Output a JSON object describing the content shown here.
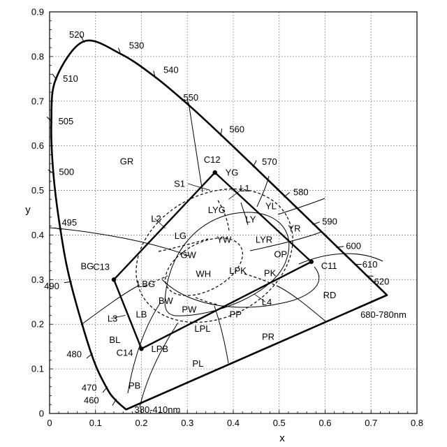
{
  "chart_data": {
    "type": "diagram",
    "xlabel": "x",
    "ylabel": "y",
    "xlim": [
      0,
      0.8
    ],
    "ylim": [
      0,
      0.9
    ],
    "x_ticks": [
      "0",
      "0.1",
      "0.2",
      "0.3",
      "0.4",
      "0.5",
      "0.6",
      "0.7",
      "0.8"
    ],
    "y_ticks": [
      "0",
      "0.1",
      "0.2",
      "0.3",
      "0.4",
      "0.5",
      "0.6",
      "0.7",
      "0.8",
      "0.9"
    ],
    "spectral_locus": [
      {
        "label": "380-410nm",
        "x": 0.1666,
        "y": 0.0089
      },
      {
        "label": "460",
        "x": 0.144,
        "y": 0.0297
      },
      {
        "label": "470",
        "x": 0.1241,
        "y": 0.0578
      },
      {
        "label": "480",
        "x": 0.0913,
        "y": 0.1327
      },
      {
        "label": "490",
        "x": 0.0454,
        "y": 0.295
      },
      {
        "label": "495",
        "x": 0.0235,
        "y": 0.4127
      },
      {
        "label": "500",
        "x": 0.0082,
        "y": 0.5384
      },
      {
        "label": "505",
        "x": 0.0039,
        "y": 0.6548
      },
      {
        "label": "510",
        "x": 0.0139,
        "y": 0.7502
      },
      {
        "label": "520",
        "x": 0.0743,
        "y": 0.8338
      },
      {
        "label": "530",
        "x": 0.1547,
        "y": 0.8059
      },
      {
        "label": "540",
        "x": 0.2296,
        "y": 0.7543
      },
      {
        "label": "550",
        "x": 0.3016,
        "y": 0.6923
      },
      {
        "label": "560",
        "x": 0.3731,
        "y": 0.6245
      },
      {
        "label": "570",
        "x": 0.4441,
        "y": 0.5547
      },
      {
        "label": "580",
        "x": 0.5125,
        "y": 0.4866
      },
      {
        "label": "590",
        "x": 0.5752,
        "y": 0.4242
      },
      {
        "label": "600",
        "x": 0.627,
        "y": 0.3725
      },
      {
        "label": "610",
        "x": 0.6658,
        "y": 0.334
      },
      {
        "label": "620",
        "x": 0.6915,
        "y": 0.3083
      },
      {
        "label": "680-780nm",
        "x": 0.7347,
        "y": 0.2653
      }
    ],
    "corner_points": [
      {
        "label": "C11",
        "x": 0.57,
        "y": 0.34
      },
      {
        "label": "C12",
        "x": 0.36,
        "y": 0.54
      },
      {
        "label": "C13",
        "x": 0.14,
        "y": 0.3
      },
      {
        "label": "C14",
        "x": 0.2,
        "y": 0.145
      }
    ],
    "line_labels": [
      {
        "label": "L1",
        "x": 0.425,
        "y": 0.505
      },
      {
        "label": "L2",
        "x": 0.232,
        "y": 0.437
      },
      {
        "label": "L3",
        "x": 0.137,
        "y": 0.213
      },
      {
        "label": "L4",
        "x": 0.473,
        "y": 0.25
      },
      {
        "label": "S1",
        "x": 0.283,
        "y": 0.515
      }
    ],
    "regions": [
      {
        "label": "GR",
        "x": 0.168,
        "y": 0.565
      },
      {
        "label": "YG",
        "x": 0.397,
        "y": 0.54
      },
      {
        "label": "YL",
        "x": 0.482,
        "y": 0.465
      },
      {
        "label": "LYG",
        "x": 0.364,
        "y": 0.456
      },
      {
        "label": "LY",
        "x": 0.438,
        "y": 0.435
      },
      {
        "label": "YR",
        "x": 0.533,
        "y": 0.415
      },
      {
        "label": "LG",
        "x": 0.285,
        "y": 0.398
      },
      {
        "label": "YW",
        "x": 0.38,
        "y": 0.39
      },
      {
        "label": "LYR",
        "x": 0.467,
        "y": 0.39
      },
      {
        "label": "GW",
        "x": 0.302,
        "y": 0.355
      },
      {
        "label": "OP",
        "x": 0.503,
        "y": 0.357
      },
      {
        "label": "BG",
        "x": 0.082,
        "y": 0.33
      },
      {
        "label": "WH",
        "x": 0.335,
        "y": 0.313
      },
      {
        "label": "LPK",
        "x": 0.41,
        "y": 0.32
      },
      {
        "label": "PK",
        "x": 0.48,
        "y": 0.315
      },
      {
        "label": "LBG",
        "x": 0.21,
        "y": 0.29
      },
      {
        "label": "BW",
        "x": 0.253,
        "y": 0.253
      },
      {
        "label": "RD",
        "x": 0.61,
        "y": 0.265
      },
      {
        "label": "LB",
        "x": 0.2,
        "y": 0.222
      },
      {
        "label": "PW",
        "x": 0.304,
        "y": 0.233
      },
      {
        "label": "PP",
        "x": 0.405,
        "y": 0.222
      },
      {
        "label": "BL",
        "x": 0.142,
        "y": 0.165
      },
      {
        "label": "LPL",
        "x": 0.333,
        "y": 0.19
      },
      {
        "label": "PR",
        "x": 0.476,
        "y": 0.172
      },
      {
        "label": "LPB",
        "x": 0.24,
        "y": 0.145
      },
      {
        "label": "PL",
        "x": 0.323,
        "y": 0.112
      },
      {
        "label": "PB",
        "x": 0.185,
        "y": 0.063
      }
    ]
  }
}
